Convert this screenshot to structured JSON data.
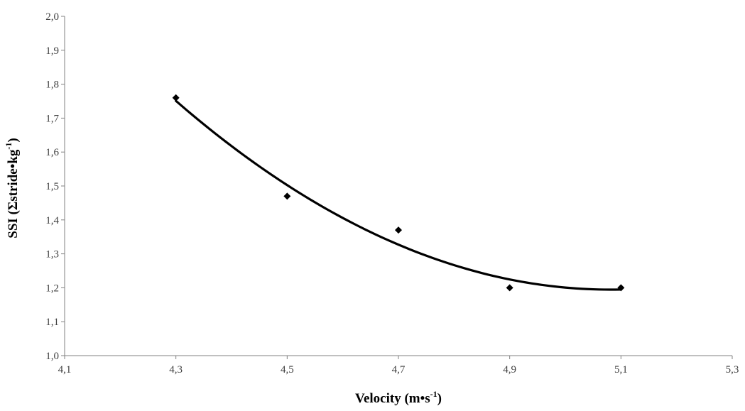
{
  "chart_data": {
    "type": "scatter",
    "title": "",
    "xlabel": {
      "text": "Velocity (m•s",
      "sup": "-1",
      "suffix": ")"
    },
    "ylabel": {
      "text": "SSI (Σstride•kg",
      "sup": "-1",
      "suffix": ")"
    },
    "xlim": [
      4.1,
      5.3
    ],
    "ylim": [
      1.0,
      2.0
    ],
    "x_ticks": [
      4.1,
      4.3,
      4.5,
      4.7,
      4.9,
      5.1,
      5.3
    ],
    "x_tick_labels": [
      "4,1",
      "4,3",
      "4,5",
      "4,7",
      "4,9",
      "5,1",
      "5,3"
    ],
    "y_ticks": [
      1.0,
      1.1,
      1.2,
      1.3,
      1.4,
      1.5,
      1.6,
      1.7,
      1.8,
      1.9,
      2.0
    ],
    "y_tick_labels": [
      "1,0",
      "1,1",
      "1,2",
      "1,3",
      "1,4",
      "1,5",
      "1,6",
      "1,7",
      "1,8",
      "1,9",
      "2,0"
    ],
    "grid": false,
    "legend": "none",
    "series": [
      {
        "marker": "diamond",
        "color": "#000000",
        "points": [
          {
            "x": 4.3,
            "y": 1.76
          },
          {
            "x": 4.5,
            "y": 1.47
          },
          {
            "x": 4.7,
            "y": 1.37
          },
          {
            "x": 4.9,
            "y": 1.2
          },
          {
            "x": 5.1,
            "y": 1.2
          }
        ]
      }
    ],
    "trendline": {
      "type": "polynomial",
      "order": 2,
      "color": "#000000",
      "x_range": [
        4.3,
        5.1
      ]
    }
  }
}
